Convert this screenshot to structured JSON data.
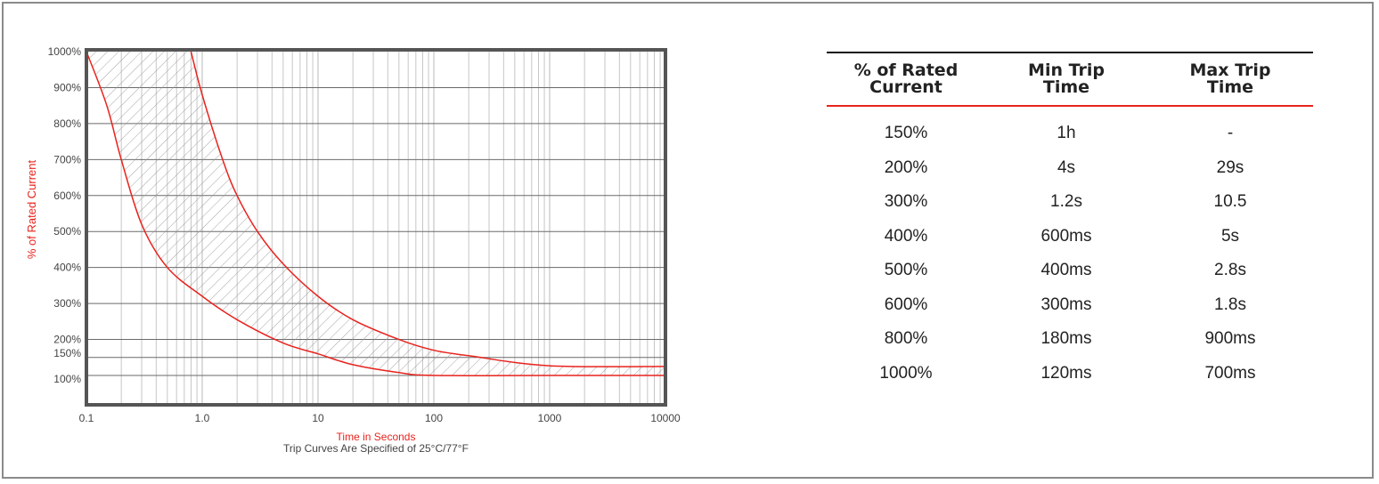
{
  "chart_data": {
    "type": "line",
    "title": "",
    "xlabel": "Time in Seconds",
    "ylabel": "% of Rated Current",
    "note": "Trip Curves Are Specified of 25°C/77°F",
    "x_scale": "log",
    "xlim": [
      0.1,
      10000
    ],
    "ylim": [
      100,
      1000
    ],
    "x_ticks": [
      "0.1",
      "1.0",
      "10",
      "100",
      "1000",
      "10000"
    ],
    "y_ticks": [
      {
        "value": 1000,
        "label": "1000%"
      },
      {
        "value": 900,
        "label": "900%"
      },
      {
        "value": 800,
        "label": "800%"
      },
      {
        "value": 700,
        "label": "700%"
      },
      {
        "value": 600,
        "label": "600%"
      },
      {
        "value": 500,
        "label": "500%"
      },
      {
        "value": 400,
        "label": "400%"
      },
      {
        "value": 300,
        "label": "300%"
      },
      {
        "value": 200,
        "label": "200%"
      },
      {
        "value": 150,
        "label": "150%"
      },
      {
        "value": 100,
        "label": "100%"
      }
    ],
    "grid": true,
    "shaded_region": "between curves",
    "series": [
      {
        "points": [
          [
            0.1,
            1000
          ],
          [
            0.15,
            850
          ],
          [
            0.2,
            700
          ],
          [
            0.3,
            520
          ],
          [
            0.5,
            400
          ],
          [
            1,
            320
          ],
          [
            2,
            255
          ],
          [
            5,
            190
          ],
          [
            10,
            160
          ],
          [
            20,
            130
          ],
          [
            50,
            108
          ],
          [
            100,
            100
          ],
          [
            1000,
            100
          ],
          [
            10000,
            100
          ]
        ]
      },
      {
        "points": [
          [
            0.8,
            1000
          ],
          [
            1,
            880
          ],
          [
            1.5,
            700
          ],
          [
            2,
            600
          ],
          [
            3,
            500
          ],
          [
            5,
            410
          ],
          [
            10,
            320
          ],
          [
            20,
            255
          ],
          [
            50,
            200
          ],
          [
            100,
            170
          ],
          [
            200,
            155
          ],
          [
            1000,
            127
          ],
          [
            10000,
            125
          ]
        ]
      }
    ]
  },
  "table": {
    "headers": [
      [
        "% of Rated",
        "Current"
      ],
      [
        "Min Trip",
        "Time"
      ],
      [
        "Max Trip",
        "Time"
      ]
    ],
    "rows": [
      [
        "150%",
        "1h",
        "-"
      ],
      [
        "200%",
        "4s",
        "29s"
      ],
      [
        "300%",
        "1.2s",
        "10.5"
      ],
      [
        "400%",
        "600ms",
        "5s"
      ],
      [
        "500%",
        "400ms",
        "2.8s"
      ],
      [
        "600%",
        "300ms",
        "1.8s"
      ],
      [
        "800%",
        "180ms",
        "900ms"
      ],
      [
        "1000%",
        "120ms",
        "700ms"
      ]
    ]
  },
  "colors": {
    "curve": "#e8231d",
    "axis_label": "#e8231d",
    "grid": "#b8b8b8",
    "border": "#555555",
    "text": "#222222"
  }
}
